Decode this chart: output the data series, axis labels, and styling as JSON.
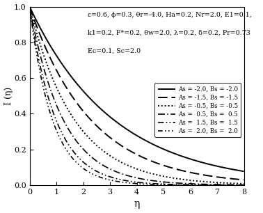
{
  "xlabel": "η",
  "ylabel": "I (η)",
  "xlim": [
    0,
    8
  ],
  "ylim": [
    0,
    1.0
  ],
  "xticks": [
    0,
    1,
    2,
    3,
    4,
    5,
    6,
    7,
    8
  ],
  "yticks": [
    0.0,
    0.2,
    0.4,
    0.6,
    0.8,
    1.0
  ],
  "ann1": "ε=0.6, ϕ=0.3, θr=-4.0, Ha=0.2, Nr=2.0, E1=0.1,",
  "ann2": "k1=0.2, F*=0.2, θw=2.0, λ=0.2, δ=0.2, Pr=0.73",
  "ann3": "Ec=0.1, Sc=2.0",
  "decay_rates": [
    0.32,
    0.44,
    0.6,
    0.8,
    1.02,
    1.18
  ],
  "legend_labels": [
    "As = -2.0, Bs = -2.0",
    "As = -1.5, Bs = -1.5",
    "As = -0.5, Bs = -0.5",
    "As =  0.5, Bs =  0.5",
    "As =  1.5, Bs =  1.5",
    "As =  2.0, Bs =  2.0"
  ],
  "background_color": "#ffffff"
}
